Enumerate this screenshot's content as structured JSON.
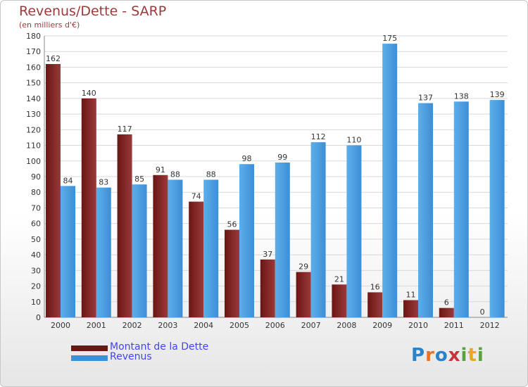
{
  "title": "Revenus/Dette - SARP",
  "subtitle": "(en milliers d'€)",
  "logo": {
    "text": "Proxiti",
    "letters": [
      {
        "ch": "P",
        "color": "#2a82c8"
      },
      {
        "ch": "r",
        "color": "#e8741e"
      },
      {
        "ch": "o",
        "color": "#2a82c8"
      },
      {
        "ch": "x",
        "color": "#c8343a"
      },
      {
        "ch": "i",
        "color": "#5aa03c"
      },
      {
        "ch": "t",
        "color": "#e8a81e"
      },
      {
        "ch": "i",
        "color": "#5aa03c"
      }
    ]
  },
  "colors": {
    "debt": "#6b1515",
    "debt_light": "#9a3a3a",
    "revenue": "#3d8fd6",
    "revenue_light": "#5caeea",
    "axis_text": "#333333",
    "grid": "#d8d8d8"
  },
  "chart_data": {
    "type": "bar",
    "title": "Revenus/Dette - SARP",
    "subtitle": "(en milliers d'€)",
    "categories": [
      "2000",
      "2001",
      "2002",
      "2003",
      "2004",
      "2005",
      "2006",
      "2007",
      "2008",
      "2009",
      "2010",
      "2011",
      "2012"
    ],
    "series": [
      {
        "name": "Montant de la Dette",
        "values": [
          162,
          140,
          117,
          91,
          74,
          56,
          37,
          29,
          21,
          16,
          11,
          6,
          0
        ]
      },
      {
        "name": "Revenus",
        "values": [
          84,
          83,
          85,
          88,
          88,
          98,
          99,
          112,
          110,
          175,
          137,
          138,
          139
        ]
      }
    ],
    "ylim": [
      0,
      180
    ],
    "yticks": [
      0,
      10,
      20,
      30,
      40,
      50,
      60,
      70,
      80,
      90,
      100,
      110,
      120,
      130,
      140,
      150,
      160,
      170,
      180
    ],
    "grid": true,
    "legend_position": "bottom-left"
  }
}
